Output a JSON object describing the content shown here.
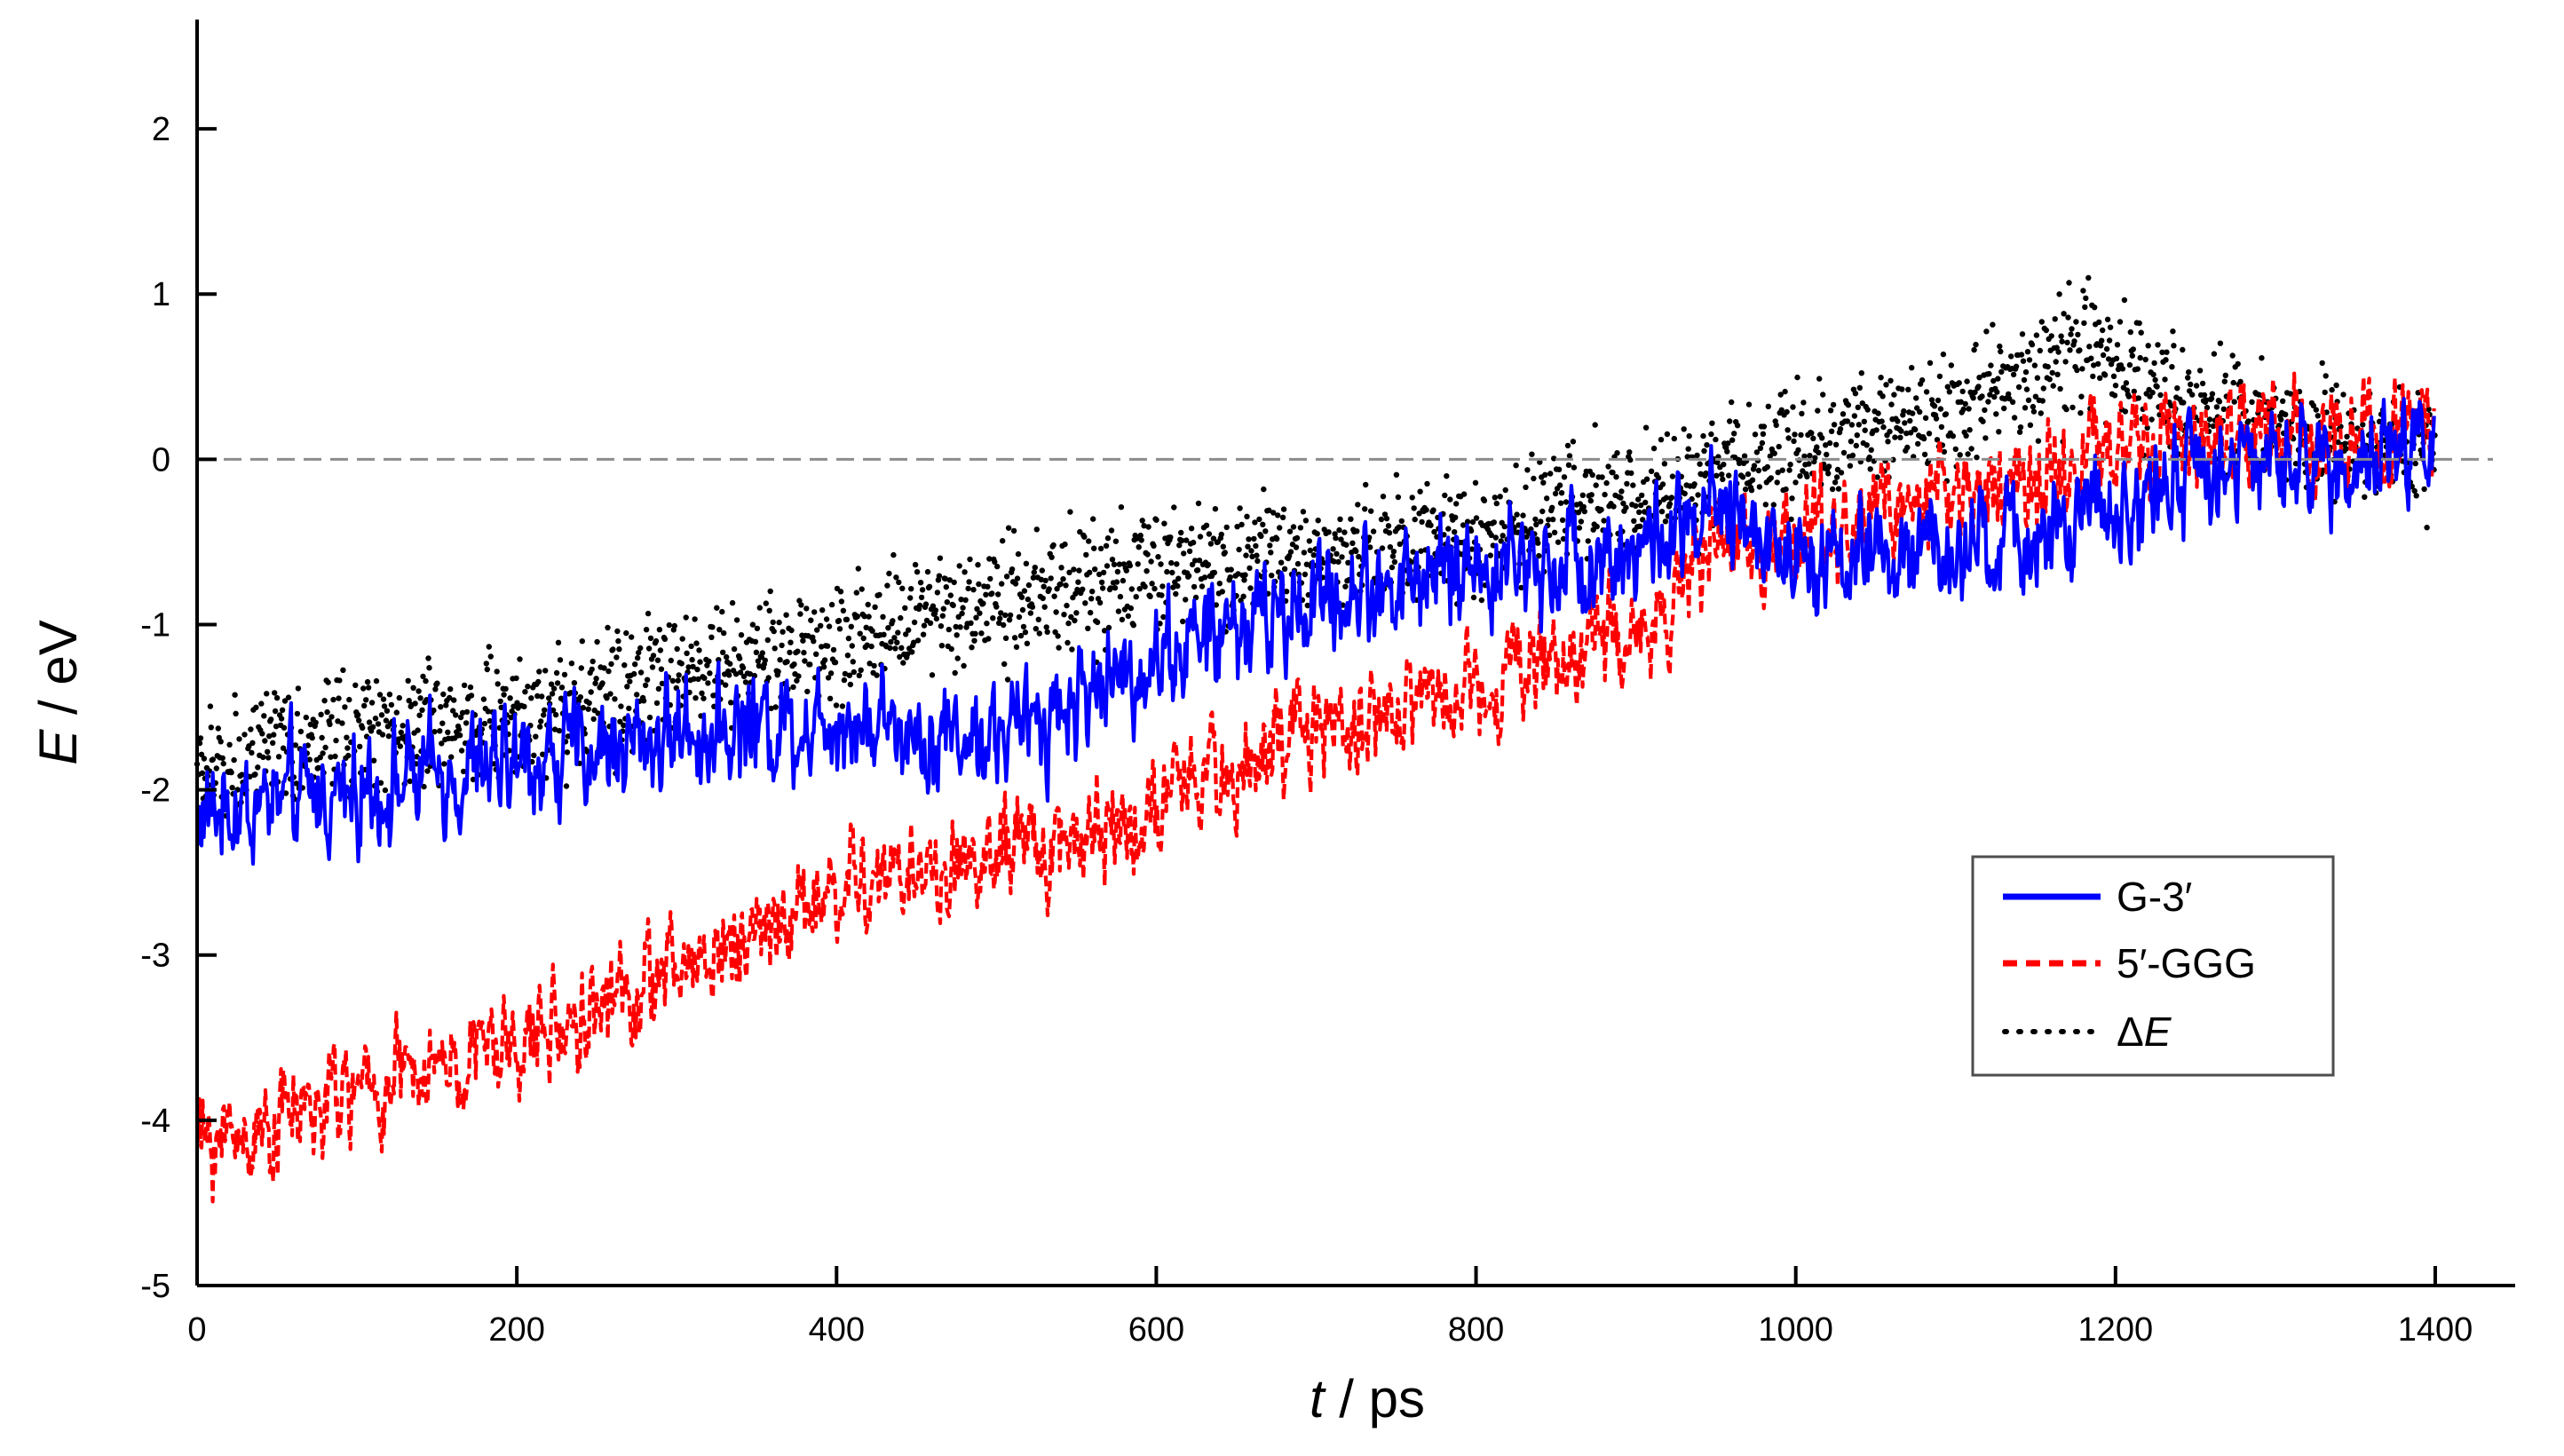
{
  "chart_data": {
    "type": "line",
    "title": "",
    "xlabel_italic": "t",
    "xlabel_rest": " / ps",
    "ylabel_italic": "E",
    "ylabel_rest": " / eV",
    "xlim": [
      0,
      1450
    ],
    "ylim": [
      -5,
      2.5
    ],
    "xticks": [
      0,
      200,
      400,
      600,
      800,
      1000,
      1200,
      1400
    ],
    "xtick_labels": [
      "0",
      "200",
      "400",
      "600",
      "800",
      "1000",
      "1200",
      "1400"
    ],
    "yticks": [
      -5,
      -4,
      -3,
      -2,
      -1,
      0,
      1,
      2
    ],
    "ytick_labels": [
      "-5",
      "-4",
      "-3",
      "-2",
      "-1",
      "0",
      "1",
      "2"
    ],
    "reference_line": {
      "y": 0,
      "style": "dashed",
      "color": "#8c8c8c"
    },
    "legend_position": "lower-right",
    "series": [
      {
        "name": "G-3′",
        "style": "solid",
        "color": "#0000ff",
        "noise": 0.26,
        "trend": [
          [
            0,
            -2.15
          ],
          [
            100,
            -2.0
          ],
          [
            200,
            -1.85
          ],
          [
            300,
            -1.65
          ],
          [
            400,
            -1.55
          ],
          [
            500,
            -1.7
          ],
          [
            600,
            -1.2
          ],
          [
            700,
            -0.85
          ],
          [
            800,
            -0.65
          ],
          [
            900,
            -0.55
          ],
          [
            950,
            -0.35
          ],
          [
            1000,
            -0.55
          ],
          [
            1100,
            -0.6
          ],
          [
            1200,
            -0.35
          ],
          [
            1250,
            -0.05
          ],
          [
            1300,
            -0.05
          ],
          [
            1400,
            0.05
          ]
        ]
      },
      {
        "name": "5′-GGG",
        "style": "dashed",
        "color": "#ff0000",
        "noise": 0.24,
        "trend": [
          [
            0,
            -4.15
          ],
          [
            100,
            -3.85
          ],
          [
            200,
            -3.55
          ],
          [
            300,
            -3.1
          ],
          [
            400,
            -2.6
          ],
          [
            500,
            -2.45
          ],
          [
            600,
            -2.1
          ],
          [
            700,
            -1.65
          ],
          [
            800,
            -1.35
          ],
          [
            900,
            -1.05
          ],
          [
            950,
            -0.6
          ],
          [
            1000,
            -0.45
          ],
          [
            1100,
            -0.2
          ],
          [
            1200,
            0.05
          ],
          [
            1300,
            0.15
          ],
          [
            1400,
            0.2
          ]
        ]
      },
      {
        "name": "ΔE",
        "legend_italic": "E",
        "legend_prefix": "Δ",
        "style": "dotted",
        "color": "#000000",
        "noise": 0.28,
        "trend": [
          [
            0,
            -1.9
          ],
          [
            100,
            -1.65
          ],
          [
            200,
            -1.55
          ],
          [
            300,
            -1.3
          ],
          [
            400,
            -1.1
          ],
          [
            500,
            -0.9
          ],
          [
            600,
            -0.65
          ],
          [
            700,
            -0.6
          ],
          [
            800,
            -0.45
          ],
          [
            900,
            -0.2
          ],
          [
            1000,
            0.05
          ],
          [
            1100,
            0.3
          ],
          [
            1180,
            0.7
          ],
          [
            1250,
            0.3
          ],
          [
            1400,
            0.0
          ]
        ]
      }
    ]
  }
}
